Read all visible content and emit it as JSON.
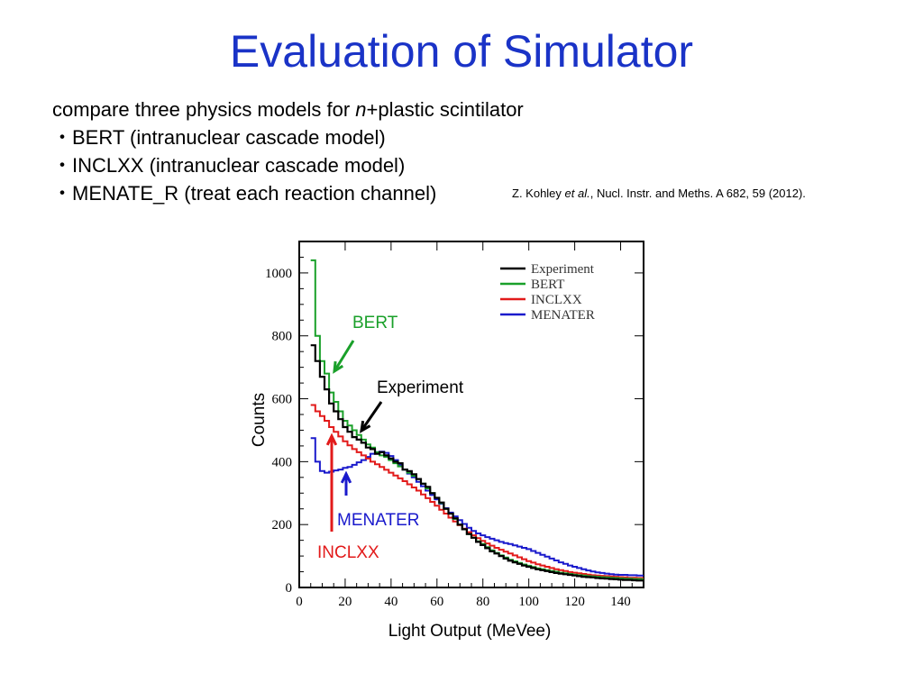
{
  "slide": {
    "title": "Evaluation of Simulator",
    "intro_prefix": "compare three physics models for ",
    "intro_italic": "n",
    "intro_suffix": "+plastic scintilator",
    "bullets": [
      "・BERT (intranuclear cascade model)",
      "・INCLXX (intranuclear cascade model)",
      "・MENATE_R (treat each reaction channel)"
    ],
    "reference_prefix": "Z. Kohley ",
    "reference_italic": "et al.",
    "reference_suffix": ", Nucl. Instr. and Meths. A 682, 59 (2012)."
  },
  "annotations": {
    "bert": "BERT",
    "experiment": "Experiment",
    "menater": "MENATER",
    "inclxx": "INCLXX"
  },
  "colors": {
    "title": "#1a33c7",
    "experiment": "#000000",
    "bert": "#1aa02a",
    "inclxx": "#e21a1a",
    "menater": "#1a1acc"
  },
  "chart_data": {
    "type": "line",
    "xlabel": "Light Output (MeVee)",
    "ylabel": "Counts",
    "xlim": [
      0,
      150
    ],
    "ylim": [
      0,
      1100
    ],
    "xticks": [
      0,
      20,
      40,
      60,
      80,
      100,
      120,
      140
    ],
    "yticks": [
      0,
      200,
      400,
      600,
      800,
      1000
    ],
    "legend_position": "top-right",
    "grid": false,
    "series": [
      {
        "name": "Experiment",
        "color": "#000000",
        "x": [
          6,
          8,
          10,
          12,
          14,
          16,
          18,
          20,
          22,
          24,
          26,
          28,
          30,
          32,
          34,
          36,
          38,
          40,
          42,
          44,
          46,
          48,
          50,
          52,
          54,
          56,
          58,
          60,
          62,
          64,
          66,
          68,
          70,
          72,
          74,
          76,
          78,
          80,
          82,
          84,
          86,
          88,
          90,
          92,
          94,
          96,
          98,
          100,
          102,
          104,
          106,
          108,
          110,
          112,
          114,
          116,
          118,
          120,
          122,
          124,
          126,
          128,
          130,
          132,
          134,
          136,
          138,
          140,
          142,
          144,
          146,
          148,
          150
        ],
        "y": [
          770,
          720,
          670,
          630,
          585,
          560,
          535,
          510,
          495,
          478,
          470,
          460,
          445,
          440,
          425,
          430,
          420,
          410,
          400,
          395,
          375,
          370,
          360,
          345,
          330,
          320,
          300,
          285,
          270,
          250,
          235,
          220,
          200,
          185,
          170,
          158,
          145,
          135,
          125,
          115,
          108,
          100,
          92,
          85,
          80,
          75,
          70,
          66,
          62,
          58,
          55,
          52,
          49,
          46,
          44,
          42,
          40,
          38,
          36,
          34,
          33,
          32,
          30,
          29,
          28,
          27,
          26,
          25,
          24,
          24,
          23,
          22,
          22
        ]
      },
      {
        "name": "BERT",
        "color": "#1aa02a",
        "x": [
          6,
          8,
          10,
          12,
          14,
          16,
          18,
          20,
          22,
          24,
          26,
          28,
          30,
          32,
          34,
          36,
          38,
          40,
          42,
          44,
          46,
          48,
          50,
          52,
          54,
          56,
          58,
          60,
          62,
          64,
          66,
          68,
          70,
          72,
          74,
          76,
          78,
          80,
          82,
          84,
          86,
          88,
          90,
          92,
          94,
          96,
          98,
          100,
          102,
          104,
          106,
          108,
          110,
          112,
          114,
          116,
          118,
          120,
          122,
          124,
          126,
          128,
          130,
          132,
          134,
          136,
          138,
          140,
          142,
          144,
          146,
          148,
          150
        ],
        "y": [
          1040,
          800,
          720,
          680,
          620,
          590,
          560,
          530,
          515,
          500,
          485,
          470,
          455,
          445,
          430,
          420,
          415,
          405,
          395,
          385,
          375,
          365,
          355,
          345,
          330,
          315,
          300,
          285,
          268,
          250,
          235,
          218,
          200,
          185,
          170,
          158,
          147,
          138,
          128,
          118,
          110,
          102,
          95,
          88,
          83,
          78,
          73,
          69,
          65,
          61,
          58,
          55,
          52,
          50,
          47,
          45,
          43,
          41,
          39,
          38,
          36,
          35,
          34,
          33,
          32,
          31,
          30,
          29,
          28,
          28,
          27,
          27,
          26
        ]
      },
      {
        "name": "INCLXX",
        "color": "#e21a1a",
        "x": [
          6,
          8,
          10,
          12,
          14,
          16,
          18,
          20,
          22,
          24,
          26,
          28,
          30,
          32,
          34,
          36,
          38,
          40,
          42,
          44,
          46,
          48,
          50,
          52,
          54,
          56,
          58,
          60,
          62,
          64,
          66,
          68,
          70,
          72,
          74,
          76,
          78,
          80,
          82,
          84,
          86,
          88,
          90,
          92,
          94,
          96,
          98,
          100,
          102,
          104,
          106,
          108,
          110,
          112,
          114,
          116,
          118,
          120,
          122,
          124,
          126,
          128,
          130,
          132,
          134,
          136,
          138,
          140,
          142,
          144,
          146,
          148,
          150
        ],
        "y": [
          580,
          560,
          545,
          530,
          510,
          495,
          480,
          465,
          452,
          440,
          430,
          420,
          410,
          400,
          392,
          383,
          374,
          365,
          356,
          347,
          338,
          328,
          318,
          308,
          296,
          284,
          272,
          260,
          247,
          235,
          222,
          210,
          198,
          187,
          176,
          166,
          157,
          148,
          140,
          133,
          126,
          120,
          114,
          108,
          102,
          96,
          90,
          84,
          79,
          74,
          70,
          66,
          62,
          58,
          55,
          52,
          49,
          47,
          45,
          43,
          41,
          39,
          38,
          37,
          36,
          35,
          34,
          33,
          32,
          31,
          31,
          30,
          30
        ]
      },
      {
        "name": "MENATER",
        "color": "#1a1acc",
        "x": [
          6,
          8,
          10,
          12,
          14,
          16,
          18,
          20,
          22,
          24,
          26,
          28,
          30,
          32,
          34,
          36,
          38,
          40,
          42,
          44,
          46,
          48,
          50,
          52,
          54,
          56,
          58,
          60,
          62,
          64,
          66,
          68,
          70,
          72,
          74,
          76,
          78,
          80,
          82,
          84,
          86,
          88,
          90,
          92,
          94,
          96,
          98,
          100,
          102,
          104,
          106,
          108,
          110,
          112,
          114,
          116,
          118,
          120,
          122,
          124,
          126,
          128,
          130,
          132,
          134,
          136,
          138,
          140,
          142,
          144,
          146,
          148,
          150
        ],
        "y": [
          475,
          400,
          370,
          365,
          368,
          372,
          375,
          380,
          383,
          390,
          398,
          405,
          415,
          425,
          430,
          432,
          428,
          418,
          405,
          390,
          375,
          362,
          350,
          336,
          322,
          308,
          294,
          280,
          266,
          252,
          238,
          226,
          214,
          202,
          190,
          180,
          172,
          166,
          160,
          155,
          150,
          145,
          141,
          138,
          134,
          130,
          126,
          122,
          116,
          110,
          104,
          98,
          92,
          86,
          80,
          75,
          70,
          66,
          62,
          58,
          54,
          51,
          48,
          46,
          44,
          42,
          41,
          40,
          40,
          39,
          39,
          38,
          38
        ]
      }
    ]
  }
}
